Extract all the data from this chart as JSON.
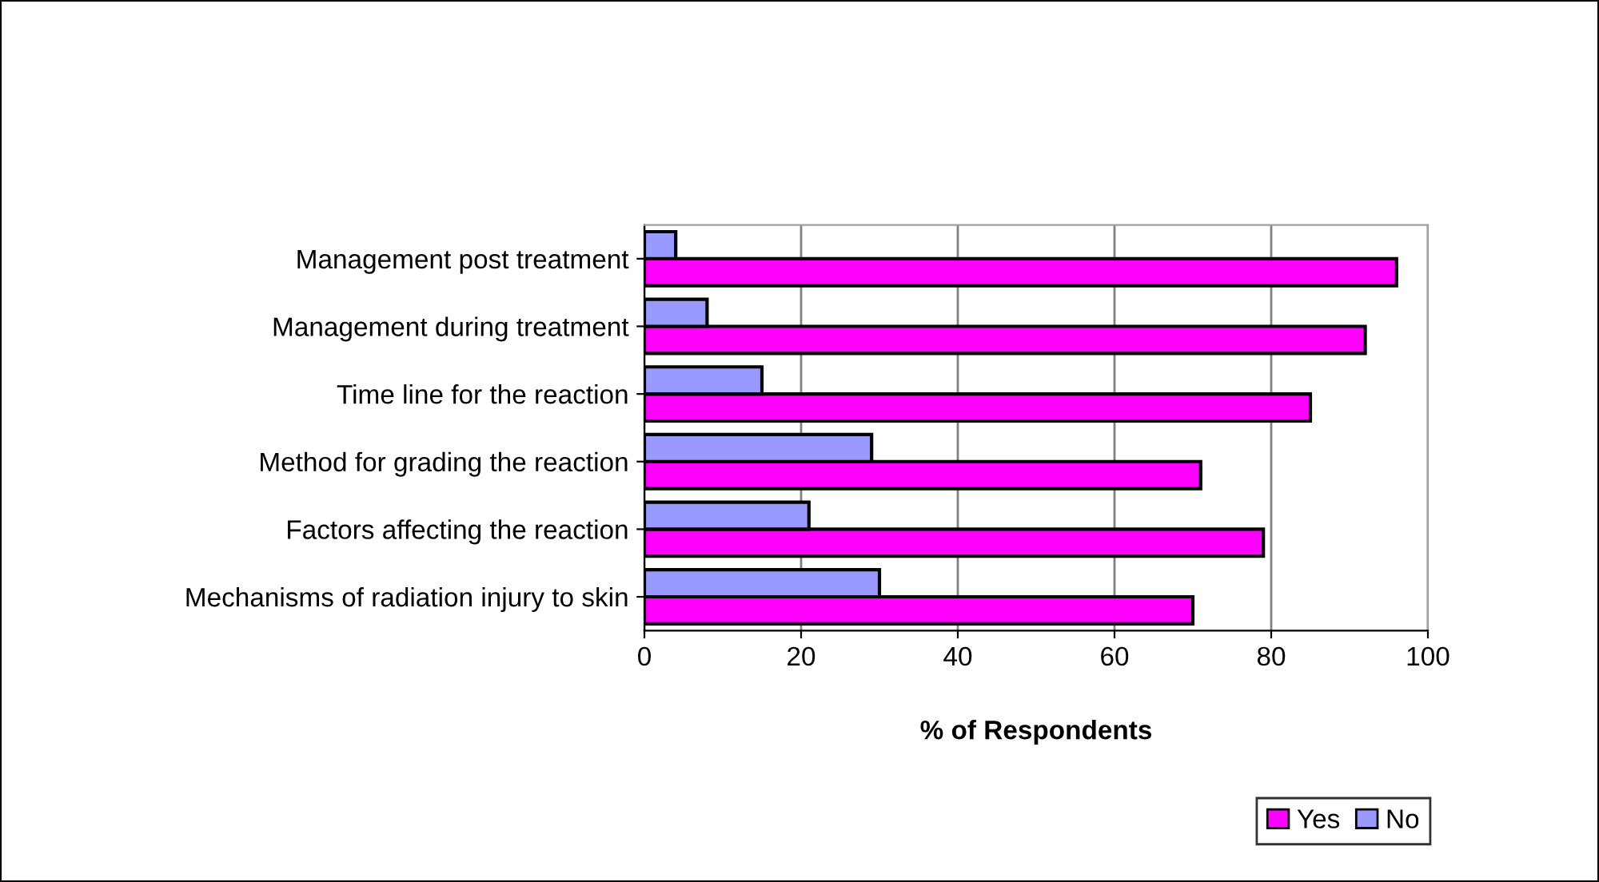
{
  "chart_data": {
    "type": "bar",
    "orientation": "horizontal",
    "xlabel": "% of Respondents",
    "categories": [
      "Management post treatment",
      "Management during treatment",
      "Time line for the reaction",
      "Method for grading the reaction",
      "Factors affecting the reaction",
      "Mechanisms of radiation injury to skin"
    ],
    "series": [
      {
        "name": "Yes",
        "color": "#ff00ff",
        "values": [
          96,
          92,
          85,
          71,
          79,
          70
        ]
      },
      {
        "name": "No",
        "color": "#9999ff",
        "values": [
          4,
          8,
          15,
          29,
          21,
          30
        ]
      }
    ],
    "xlim": [
      0,
      100
    ],
    "xticks": [
      0,
      20,
      40,
      60,
      80,
      100
    ],
    "grid": "x",
    "legend": "bottom right"
  }
}
